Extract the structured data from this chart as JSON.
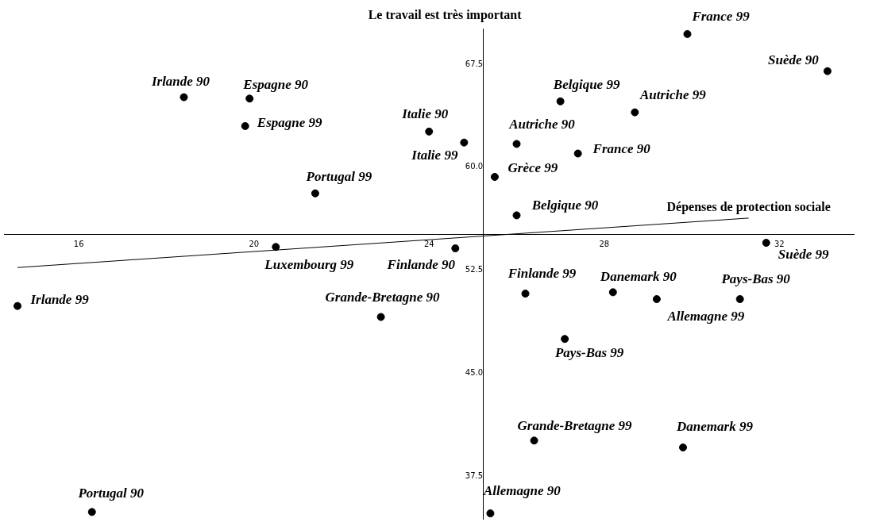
{
  "chart_data": {
    "type": "scatter",
    "ylabel": "Le travail est très important",
    "xlim": [
      14.3,
      33.7
    ],
    "ylim": [
      34.4,
      70.1
    ],
    "xticks": [
      16,
      20,
      24,
      28,
      32
    ],
    "yticks": [
      {
        "value": 37.5,
        "label": "37.5"
      },
      {
        "value": 45,
        "label": "45.0"
      },
      {
        "value": 52.5,
        "label": "52.5"
      },
      {
        "value": 60,
        "label": "60.0"
      },
      {
        "value": 67.5,
        "label": "67.5"
      }
    ],
    "grid": false,
    "legend": false,
    "marker": "circle",
    "series": [
      {
        "color": "#000000",
        "x": [
          18.4,
          19.9,
          19.8,
          21.4,
          24.0,
          24.8,
          26.0,
          25.5,
          27.0,
          28.7,
          27.4,
          29.9,
          33.1,
          26.0,
          31.7,
          20.5,
          24.6,
          14.6,
          22.9,
          26.2,
          28.2,
          29.2,
          31.1,
          27.1,
          26.4,
          29.8,
          16.3,
          25.4
        ],
        "values": [
          65.1,
          65.0,
          63.0,
          58.1,
          62.6,
          61.8,
          61.7,
          59.3,
          64.8,
          64.0,
          61.0,
          69.7,
          67.0,
          56.5,
          54.5,
          54.2,
          54.1,
          49.9,
          49.1,
          50.8,
          50.9,
          50.4,
          50.4,
          47.5,
          40.1,
          39.6,
          34.9,
          34.8
        ],
        "value_labels": [
          "Irlande 90",
          "Espagne 90",
          "Espagne 99",
          "Portugal 99",
          "Italie 90",
          "Italie 99",
          "Autriche 90",
          "Grèce 99",
          "Belgique 99",
          "Autriche 99",
          "France 90",
          "France 99",
          "Suède 90",
          "Belgique 90",
          "Suède 99",
          "Luxembourg 99",
          "Finlande 90",
          "Irlande 99",
          "Grande-Bretagne 90",
          "Finlande 99",
          "Danemark 90",
          "Allemagne 99",
          "Pays-Bas 90",
          "Pays-Bas 99",
          "Grande-Bretagne 99",
          "Danemark 99",
          "Portugal 90",
          "Allemagne 90"
        ]
      },
      {
        "type": "line",
        "color": "#000000",
        "line_style": "solid",
        "marker": "none",
        "x": [
          14.6,
          31.3
        ],
        "values": [
          52.7,
          56.3
        ]
      }
    ],
    "annotations": [
      {
        "text": "Dépenses de protection sociale",
        "x": 31.3,
        "y": 56.3
      }
    ]
  }
}
